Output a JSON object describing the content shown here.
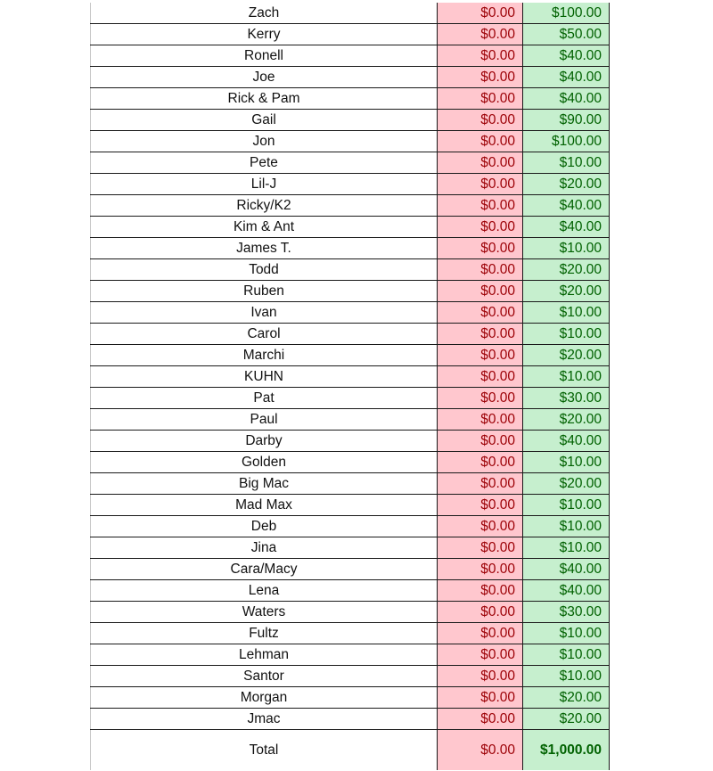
{
  "rows": [
    {
      "name": "Zach",
      "owed": "$0.00",
      "paid": "$100.00"
    },
    {
      "name": "Kerry",
      "owed": "$0.00",
      "paid": "$50.00"
    },
    {
      "name": "Ronell",
      "owed": "$0.00",
      "paid": "$40.00"
    },
    {
      "name": "Joe",
      "owed": "$0.00",
      "paid": "$40.00"
    },
    {
      "name": "Rick & Pam",
      "owed": "$0.00",
      "paid": "$40.00"
    },
    {
      "name": "Gail",
      "owed": "$0.00",
      "paid": "$90.00"
    },
    {
      "name": "Jon",
      "owed": "$0.00",
      "paid": "$100.00"
    },
    {
      "name": "Pete",
      "owed": "$0.00",
      "paid": "$10.00"
    },
    {
      "name": "Lil-J",
      "owed": "$0.00",
      "paid": "$20.00"
    },
    {
      "name": "Ricky/K2",
      "owed": "$0.00",
      "paid": "$40.00"
    },
    {
      "name": "Kim & Ant",
      "owed": "$0.00",
      "paid": "$40.00"
    },
    {
      "name": "James T.",
      "owed": "$0.00",
      "paid": "$10.00"
    },
    {
      "name": "Todd",
      "owed": "$0.00",
      "paid": "$20.00"
    },
    {
      "name": "Ruben",
      "owed": "$0.00",
      "paid": "$20.00"
    },
    {
      "name": "Ivan",
      "owed": "$0.00",
      "paid": "$10.00"
    },
    {
      "name": "Carol",
      "owed": "$0.00",
      "paid": "$10.00"
    },
    {
      "name": "Marchi",
      "owed": "$0.00",
      "paid": "$20.00"
    },
    {
      "name": "KUHN",
      "owed": "$0.00",
      "paid": "$10.00"
    },
    {
      "name": "Pat",
      "owed": "$0.00",
      "paid": "$30.00"
    },
    {
      "name": "Paul",
      "owed": "$0.00",
      "paid": "$20.00"
    },
    {
      "name": "Darby",
      "owed": "$0.00",
      "paid": "$40.00"
    },
    {
      "name": "Golden",
      "owed": "$0.00",
      "paid": "$10.00"
    },
    {
      "name": "Big Mac",
      "owed": "$0.00",
      "paid": "$20.00"
    },
    {
      "name": "Mad Max",
      "owed": "$0.00",
      "paid": "$10.00"
    },
    {
      "name": "Deb",
      "owed": "$0.00",
      "paid": "$10.00"
    },
    {
      "name": "Jina",
      "owed": "$0.00",
      "paid": "$10.00"
    },
    {
      "name": "Cara/Macy",
      "owed": "$0.00",
      "paid": "$40.00"
    },
    {
      "name": "Lena",
      "owed": "$0.00",
      "paid": "$40.00"
    },
    {
      "name": "Waters",
      "owed": "$0.00",
      "paid": "$30.00"
    },
    {
      "name": "Fultz",
      "owed": "$0.00",
      "paid": "$10.00"
    },
    {
      "name": "Lehman",
      "owed": "$0.00",
      "paid": "$10.00"
    },
    {
      "name": "Santor",
      "owed": "$0.00",
      "paid": "$10.00"
    },
    {
      "name": "Morgan",
      "owed": "$0.00",
      "paid": "$20.00"
    },
    {
      "name": "Jmac",
      "owed": "$0.00",
      "paid": "$20.00"
    }
  ],
  "total": {
    "label": "Total",
    "owed": "$0.00",
    "paid": "$1,000.00"
  },
  "colors": {
    "negative_fill": "#ffc7ce",
    "negative_text": "#9c0006",
    "positive_fill": "#c6efce",
    "positive_text": "#006100"
  }
}
